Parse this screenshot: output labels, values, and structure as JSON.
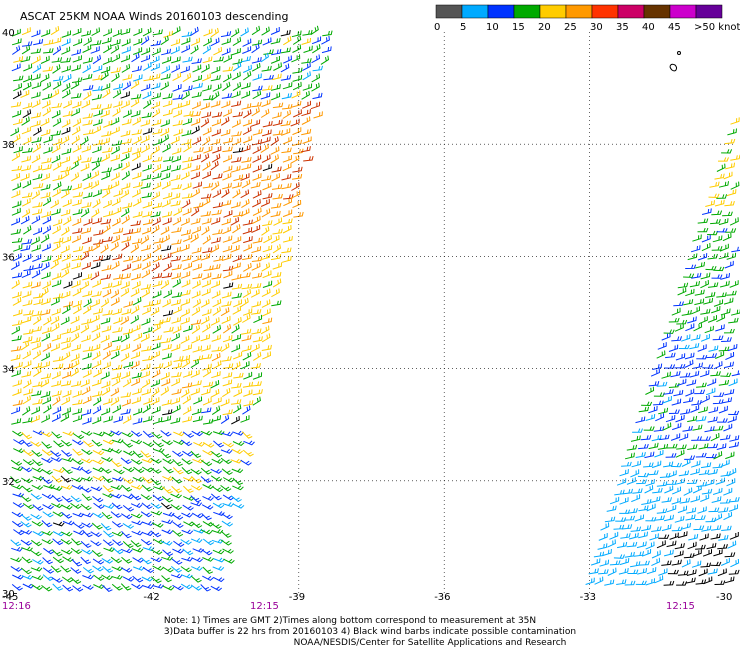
{
  "title": "ASCAT 25KM NOAA Winds 20160103 descending",
  "legend": {
    "labels": [
      "0",
      "5",
      "10",
      "15",
      "20",
      "25",
      "30",
      "35",
      "40",
      "45",
      ">50 knots"
    ],
    "colors": [
      "#555555",
      "#00aaff",
      "#0033ff",
      "#00aa00",
      "#ffcc00",
      "#ff9900",
      "#ff3300",
      "#cc0066",
      "#663300",
      "#cc00cc",
      "#660099"
    ]
  },
  "lat_labels": [
    "40",
    "38",
    "36",
    "34",
    "32",
    "30"
  ],
  "lon_labels": [
    "-45",
    "-42",
    "-39",
    "-36",
    "-33",
    "-30"
  ],
  "time_labels": [
    "12:16",
    "12:15",
    "12:15"
  ],
  "notes": [
    "Note: 1) Times are GMT 2)Times along bottom correspond to measurement at 35N",
    "3)Data buffer is 22 hrs from 20160103 4) Black wind barbs indicate possible contamination",
    "NOAA/NESDIS/Center for Satellite Applications and Research"
  ],
  "map_data": {
    "lat_range": [
      30,
      40
    ],
    "lon_range": [
      -45,
      -30
    ],
    "grid_lats": [
      38,
      36,
      34,
      32
    ],
    "grid_lons": [
      -42,
      -39,
      -36,
      -33
    ],
    "left_swath_colors": [
      "#00aa00",
      "#ffcc00",
      "#ff9900",
      "#cc3300",
      "#0033ff",
      "#00aaff",
      "#000000"
    ],
    "right_swath_colors": [
      "#ffcc00",
      "#00aa00",
      "#0033ff",
      "#00aaff",
      "#000000"
    ]
  }
}
